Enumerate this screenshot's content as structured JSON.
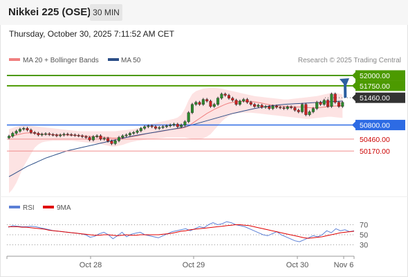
{
  "header": {
    "title": "Nikkei 225 (OSE)",
    "timeframe": "30 MIN",
    "datetime": "Thursday, October 30, 2025 7:11:52 AM CET"
  },
  "main_chart": {
    "legend": [
      {
        "label": "MA 20 + Bollinger Bands",
        "color": "#f08080"
      },
      {
        "label": "MA 50",
        "color": "#2c4f88"
      }
    ],
    "credit": "Research © 2025 Trading Central",
    "price_levels": [
      {
        "value": 52000,
        "label": "52000.00",
        "style": "badge",
        "color": "#4c9a00",
        "line": true
      },
      {
        "value": 51750,
        "label": "51750.00",
        "style": "badge",
        "color": "#4c9a00",
        "line": true
      },
      {
        "value": 51460,
        "label": "51460.00",
        "style": "badge",
        "color": "#333333",
        "line": false
      },
      {
        "value": 50800,
        "label": "50800.00",
        "style": "badge",
        "color": "#2d6be4",
        "line": true
      },
      {
        "value": 50460,
        "label": "50460.00",
        "style": "text",
        "color": "#cc0000",
        "line": true
      },
      {
        "value": 50170,
        "label": "50170.00",
        "style": "text",
        "color": "#cc0000",
        "line": true
      }
    ]
  },
  "chart_data": {
    "type": "candlestick",
    "instrument": "Nikkei 225 (OSE)",
    "interval": "30 MIN",
    "x_axis": {
      "ticks": [
        "Oct 28",
        "Oct 29",
        "Oct 30",
        "Nov 6"
      ]
    },
    "y_range": [
      49100,
      52150
    ],
    "close": [
      50530,
      50600,
      50650,
      50700,
      50720,
      50680,
      50620,
      50600,
      50560,
      50580,
      50590,
      50570,
      50560,
      50540,
      50560,
      50580,
      50570,
      50560,
      50550,
      50540,
      50520,
      50500,
      50440,
      50520,
      50540,
      50460,
      50480,
      50410,
      50350,
      50420,
      50500,
      50540,
      50560,
      50600,
      50620,
      50660,
      50720,
      50760,
      50780,
      50760,
      50720,
      50740,
      50760,
      50780,
      50800,
      50820,
      50760,
      50800,
      50880,
      51100,
      51300,
      51350,
      51300,
      51420,
      51380,
      51250,
      51300,
      51450,
      51550,
      51520,
      51450,
      51400,
      51300,
      51380,
      51420,
      51350,
      51300,
      51250,
      51280,
      51230,
      51250,
      51200,
      51260,
      51230,
      51220,
      51200,
      51240,
      51220,
      51160,
      51120,
      51300,
      51050,
      51120,
      51200,
      51350,
      51300,
      51400,
      51250,
      51550,
      51350,
      51250,
      51350
    ],
    "ma20": [
      50500,
      50540,
      50560,
      50580,
      50600,
      50610,
      50610,
      50600,
      50590,
      50580,
      50580,
      50575,
      50570,
      50565,
      50560,
      50560,
      50560,
      50555,
      50550,
      50545,
      50540,
      50535,
      50525,
      50520,
      50515,
      50510,
      50505,
      50500,
      50490,
      50485,
      50490,
      50495,
      50500,
      50510,
      50525,
      50540,
      50560,
      50580,
      50600,
      50615,
      50625,
      50640,
      50655,
      50670,
      50690,
      50700,
      50710,
      50720,
      50740,
      50780,
      50840,
      50900,
      50960,
      51020,
      51080,
      51130,
      51180,
      51220,
      51260,
      51300,
      51330,
      51350,
      51360,
      51370,
      51375,
      51375,
      51370,
      51360,
      51345,
      51330,
      51310,
      51295,
      51280,
      51270,
      51260,
      51255,
      51250,
      51245,
      51240,
      51235,
      51240,
      51230,
      51220,
      51215,
      51220,
      51225,
      51235,
      51240,
      51255,
      51260,
      51265,
      51270
    ],
    "bb_upper": [
      50700,
      50730,
      50760,
      50780,
      50790,
      50790,
      50780,
      50770,
      50760,
      50750,
      50740,
      50730,
      50720,
      50710,
      50700,
      50690,
      50680,
      50670,
      50660,
      50650,
      50650,
      50650,
      50650,
      50650,
      50650,
      50650,
      50650,
      50650,
      50650,
      50650,
      50660,
      50670,
      50680,
      50690,
      50700,
      50720,
      50750,
      50780,
      50810,
      50830,
      50850,
      50870,
      50890,
      50910,
      50930,
      50950,
      50980,
      51050,
      51200,
      51400,
      51550,
      51620,
      51650,
      51680,
      51690,
      51700,
      51700,
      51690,
      51680,
      51660,
      51640,
      51620,
      51600,
      51580,
      51560,
      51540,
      51520,
      51500,
      51490,
      51480,
      51470,
      51460,
      51450,
      51440,
      51430,
      51420,
      51420,
      51430,
      51440,
      51450,
      51460,
      51470,
      51480,
      51490,
      51500,
      51520,
      51540,
      51560,
      51580,
      51580,
      51560,
      51540
    ],
    "bb_lower": [
      49150,
      49250,
      49400,
      49600,
      49800,
      49950,
      50100,
      50250,
      50330,
      50380,
      50400,
      50410,
      50420,
      50420,
      50420,
      50420,
      50420,
      50420,
      50410,
      50400,
      50390,
      50380,
      50370,
      50360,
      50350,
      50340,
      50320,
      50300,
      50280,
      50280,
      50300,
      50320,
      50350,
      50380,
      50400,
      50420,
      50430,
      50440,
      50450,
      50460,
      50470,
      50480,
      50490,
      50500,
      50500,
      50500,
      50500,
      50500,
      50500,
      50480,
      50460,
      50450,
      50460,
      50480,
      50520,
      50580,
      50680,
      50780,
      50880,
      50960,
      51020,
      51060,
      51080,
      51090,
      51100,
      51100,
      51100,
      51090,
      51080,
      51070,
      51060,
      51050,
      51040,
      51030,
      51020,
      51010,
      51000,
      50990,
      50980,
      50970,
      50960,
      50950,
      50950,
      50960,
      50970,
      50980,
      50990,
      51000,
      51000,
      50990,
      50980,
      50970
    ],
    "ma50": [
      49550,
      49600,
      49650,
      49700,
      49750,
      49800,
      49840,
      49880,
      49920,
      49960,
      50000,
      50030,
      50060,
      50090,
      50120,
      50150,
      50180,
      50200,
      50220,
      50240,
      50260,
      50280,
      50300,
      50320,
      50340,
      50360,
      50380,
      50400,
      50420,
      50440,
      50460,
      50480,
      50500,
      50520,
      50540,
      50555,
      50570,
      50585,
      50600,
      50615,
      50630,
      50645,
      50660,
      50675,
      50690,
      50705,
      50720,
      50735,
      50755,
      50780,
      50805,
      50830,
      50855,
      50880,
      50905,
      50930,
      50955,
      50980,
      51005,
      51030,
      51055,
      51080,
      51100,
      51120,
      51140,
      51160,
      51180,
      51200,
      51215,
      51230,
      51245,
      51260,
      51270,
      51280,
      51290,
      51300,
      51305,
      51310,
      51315,
      51320,
      51325,
      51330,
      51335,
      51340,
      51345,
      51350,
      51355,
      51360,
      51365,
      51370,
      51375,
      51380
    ],
    "rsi": {
      "labels": [
        "RSI",
        "9MA"
      ],
      "levels": [
        70,
        50,
        30
      ],
      "rsi_values": [
        65,
        68,
        67,
        66,
        66,
        67,
        66,
        64,
        62,
        60,
        58,
        57,
        56,
        55,
        54,
        53,
        52,
        50,
        45,
        47,
        52,
        55,
        50,
        42,
        48,
        55,
        46,
        51,
        53,
        55,
        50,
        48,
        46,
        44,
        48,
        52,
        56,
        58,
        60,
        62,
        58,
        62,
        66,
        64,
        70,
        74,
        70,
        72,
        76,
        74,
        70,
        68,
        66,
        62,
        58,
        54,
        50,
        48,
        52,
        56,
        50,
        46,
        42,
        38,
        36,
        40,
        44,
        48,
        46,
        50,
        58,
        54,
        62,
        58,
        60,
        56,
        58
      ],
      "ma9_values": [
        66,
        66,
        66,
        65,
        65,
        64,
        63,
        62,
        61,
        59,
        58,
        57,
        56,
        55,
        54,
        53,
        52,
        51,
        50,
        49,
        49,
        50,
        50,
        49,
        48,
        49,
        50,
        49,
        49,
        50,
        50,
        50,
        50,
        50,
        51,
        52,
        53,
        55,
        57,
        58,
        60,
        61,
        62,
        63,
        64,
        65,
        66,
        67,
        68,
        69,
        70,
        70,
        69,
        68,
        66,
        64,
        62,
        60,
        58,
        56,
        54,
        52,
        50,
        48,
        46,
        44,
        43,
        44,
        45,
        46,
        48,
        50,
        52,
        54,
        55,
        56,
        57
      ]
    }
  }
}
